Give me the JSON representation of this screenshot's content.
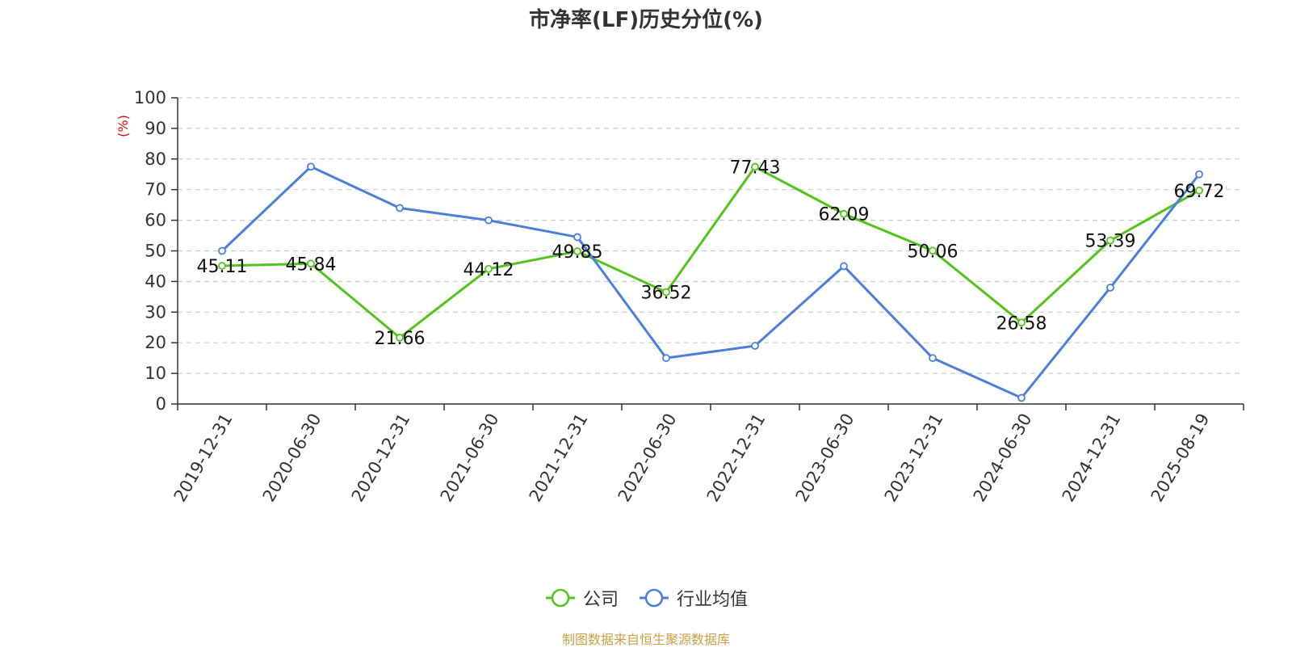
{
  "chart_data": {
    "type": "line",
    "title": "市净率(LF)历史分位(%)",
    "ylabel": "(%)",
    "ylim": [
      0,
      100
    ],
    "yticks": [
      0,
      10,
      20,
      30,
      40,
      50,
      60,
      70,
      80,
      90,
      100
    ],
    "categories": [
      "2019-12-31",
      "2020-06-30",
      "2020-12-31",
      "2021-06-30",
      "2021-12-31",
      "2022-06-30",
      "2022-12-31",
      "2023-06-30",
      "2023-12-31",
      "2024-06-30",
      "2024-12-31",
      "2025-08-19"
    ],
    "grid": true,
    "legend_position": "bottom",
    "series": [
      {
        "name": "公司",
        "color": "#52c41a",
        "values": [
          45.11,
          45.84,
          21.66,
          44.12,
          49.85,
          36.52,
          77.43,
          62.09,
          50.06,
          26.58,
          53.39,
          69.72
        ],
        "show_labels": true
      },
      {
        "name": "行业均值",
        "color": "#4a7fdc",
        "values": [
          50,
          77.5,
          64,
          60,
          54.5,
          15,
          19,
          45,
          15,
          2,
          38,
          75
        ],
        "show_labels": false
      }
    ]
  },
  "footer": {
    "source": "制图数据来自恒生聚源数据库"
  }
}
